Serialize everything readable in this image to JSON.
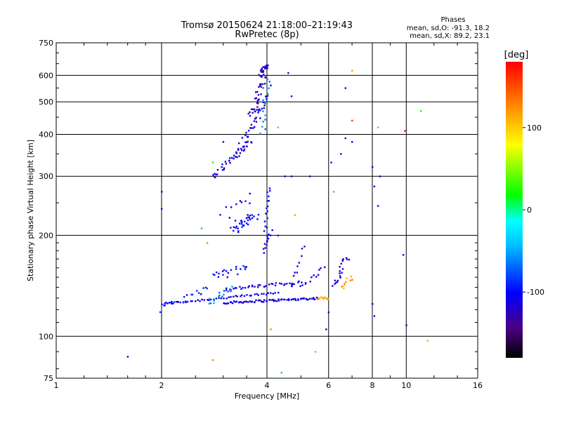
{
  "chart_data": {
    "type": "scatter",
    "title": "Tromsø 20150624 21:18:00–21:19:43",
    "subtitle": "RwPretec (8p)",
    "xlabel": "Frequency [MHz]",
    "ylabel": "Stationary phase Virtual Height [km]",
    "x_scale": "log",
    "y_scale": "log",
    "xlim": [
      1,
      16
    ],
    "ylim": [
      75,
      750
    ],
    "x_ticks": [
      1,
      2,
      4,
      6,
      8,
      10,
      16
    ],
    "x_tick_labels": [
      "1",
      "2",
      "4",
      "6",
      "8",
      "10",
      "16"
    ],
    "y_ticks": [
      75,
      100,
      200,
      300,
      400,
      500,
      600,
      750
    ],
    "y_tick_labels": [
      "75",
      "100",
      "200",
      "300",
      "400",
      "500",
      "600",
      "750"
    ],
    "grid": true,
    "phase_stats": {
      "heading": "Phases",
      "line_o": "mean, sd,O: -91.3, 18.2",
      "line_x": "mean, sd,X:  89.2, 23.1"
    },
    "colorbar": {
      "unit_label": "[deg]",
      "range": [
        -180,
        180
      ],
      "ticks": [
        100,
        0,
        -100
      ],
      "tick_labels": [
        "100",
        "0",
        "-100"
      ],
      "colormap": [
        "#000000",
        "#4b0082",
        "#0000ff",
        "#00bfff",
        "#00ffff",
        "#00ff00",
        "#ffff00",
        "#ff8000",
        "#ff0000"
      ]
    },
    "traces": [
      {
        "type": "seg",
        "x0": 2.0,
        "x1": 4.3,
        "h0": 125,
        "h1": 135,
        "n": 50,
        "phase": -110,
        "jitter": 0.01
      },
      {
        "type": "seg",
        "x0": 3.0,
        "x1": 5.6,
        "h0": 126,
        "h1": 130,
        "n": 70,
        "phase": -115,
        "jitter": 0.01
      },
      {
        "type": "seg",
        "x0": 5.6,
        "x1": 6.0,
        "h0": 130,
        "h1": 130,
        "n": 12,
        "phase": 120,
        "jitter": 0.01
      },
      {
        "type": "seg",
        "x0": 3.0,
        "x1": 5.0,
        "h0": 138,
        "h1": 145,
        "n": 40,
        "phase": -110,
        "jitter": 0.015
      },
      {
        "type": "seg",
        "x0": 5.0,
        "x1": 5.8,
        "h0": 140,
        "h1": 160,
        "n": 12,
        "phase": -110,
        "jitter": 0.02
      },
      {
        "type": "seg",
        "x0": 3.9,
        "x1": 4.1,
        "h0": 180,
        "h1": 205,
        "n": 12,
        "phase": -110,
        "jitter": 0.02
      },
      {
        "type": "seg",
        "x0": 3.95,
        "x1": 4.05,
        "h0": 205,
        "h1": 280,
        "n": 15,
        "phase": -110,
        "jitter": 0.02
      },
      {
        "type": "seg",
        "x0": 3.2,
        "x1": 3.7,
        "h0": 210,
        "h1": 230,
        "n": 35,
        "phase": -105,
        "jitter": 0.05
      },
      {
        "type": "seg",
        "x0": 3.0,
        "x1": 3.6,
        "h0": 230,
        "h1": 260,
        "n": 10,
        "phase": -100,
        "jitter": 0.05
      },
      {
        "type": "seg",
        "x0": 2.8,
        "x1": 3.6,
        "h0": 300,
        "h1": 380,
        "n": 35,
        "phase": -110,
        "jitter": 0.03
      },
      {
        "type": "seg",
        "x0": 3.3,
        "x1": 4.0,
        "h0": 350,
        "h1": 520,
        "n": 40,
        "phase": -115,
        "jitter": 0.04
      },
      {
        "type": "seg",
        "x0": 3.6,
        "x1": 4.0,
        "h0": 450,
        "h1": 640,
        "n": 40,
        "phase": -120,
        "jitter": 0.04
      },
      {
        "type": "seg",
        "x0": 3.8,
        "x1": 4.0,
        "h0": 600,
        "h1": 650,
        "n": 15,
        "phase": -120,
        "jitter": 0.02
      },
      {
        "type": "seg",
        "x0": 3.9,
        "x1": 4.0,
        "h0": 400,
        "h1": 600,
        "n": 15,
        "phase": -60,
        "jitter": 0.04
      },
      {
        "type": "seg",
        "x0": 6.2,
        "x1": 6.8,
        "h0": 140,
        "h1": 175,
        "n": 20,
        "phase": -110,
        "jitter": 0.03
      },
      {
        "type": "seg",
        "x0": 6.5,
        "x1": 7.0,
        "h0": 140,
        "h1": 150,
        "n": 10,
        "phase": 120,
        "jitter": 0.03
      },
      {
        "type": "seg",
        "x0": 2.7,
        "x1": 3.2,
        "h0": 125,
        "h1": 140,
        "n": 15,
        "phase": -60,
        "jitter": 0.03
      },
      {
        "type": "seg",
        "x0": 2.0,
        "x1": 2.7,
        "h0": 120,
        "h1": 140,
        "n": 20,
        "phase": -90,
        "jitter": 0.03
      },
      {
        "type": "seg",
        "x0": 2.8,
        "x1": 3.5,
        "h0": 150,
        "h1": 160,
        "n": 20,
        "phase": -100,
        "jitter": 0.04
      },
      {
        "type": "seg",
        "x0": 4.7,
        "x1": 5.1,
        "h0": 140,
        "h1": 185,
        "n": 10,
        "phase": -110,
        "jitter": 0.03
      },
      {
        "type": "pt",
        "x": 1.6,
        "h": 87,
        "phase": -110
      },
      {
        "type": "pt",
        "x": 2.0,
        "h": 270,
        "phase": -110
      },
      {
        "type": "pt",
        "x": 2.0,
        "h": 240,
        "phase": -110
      },
      {
        "type": "pt",
        "x": 2.8,
        "h": 85,
        "phase": 130
      },
      {
        "type": "pt",
        "x": 4.1,
        "h": 105,
        "phase": 130
      },
      {
        "type": "pt",
        "x": 4.4,
        "h": 78,
        "phase": -40
      },
      {
        "type": "pt",
        "x": 5.5,
        "h": 90,
        "phase": 120
      },
      {
        "type": "pt",
        "x": 5.9,
        "h": 105,
        "phase": -110
      },
      {
        "type": "pt",
        "x": 6.0,
        "h": 118,
        "phase": -110
      },
      {
        "type": "pt",
        "x": 7.0,
        "h": 620,
        "phase": 120
      },
      {
        "type": "pt",
        "x": 7.0,
        "h": 380,
        "phase": -110
      },
      {
        "type": "pt",
        "x": 7.0,
        "h": 440,
        "phase": 160
      },
      {
        "type": "pt",
        "x": 6.7,
        "h": 550,
        "phase": -110
      },
      {
        "type": "pt",
        "x": 8.0,
        "h": 320,
        "phase": -110
      },
      {
        "type": "pt",
        "x": 8.1,
        "h": 280,
        "phase": -110
      },
      {
        "type": "pt",
        "x": 8.3,
        "h": 420,
        "phase": 120
      },
      {
        "type": "pt",
        "x": 8.4,
        "h": 300,
        "phase": -110
      },
      {
        "type": "pt",
        "x": 8.3,
        "h": 245,
        "phase": -110
      },
      {
        "type": "pt",
        "x": 8.0,
        "h": 125,
        "phase": -110
      },
      {
        "type": "pt",
        "x": 8.1,
        "h": 115,
        "phase": -110
      },
      {
        "type": "pt",
        "x": 9.8,
        "h": 175,
        "phase": -110
      },
      {
        "type": "pt",
        "x": 9.9,
        "h": 410,
        "phase": 170
      },
      {
        "type": "pt",
        "x": 10.0,
        "h": 108,
        "phase": -110
      },
      {
        "type": "pt",
        "x": 11.0,
        "h": 470,
        "phase": 20
      },
      {
        "type": "pt",
        "x": 11.5,
        "h": 97,
        "phase": 110
      },
      {
        "type": "pt",
        "x": 4.6,
        "h": 610,
        "phase": -110
      },
      {
        "type": "pt",
        "x": 4.7,
        "h": 520,
        "phase": -110
      },
      {
        "type": "pt",
        "x": 4.5,
        "h": 300,
        "phase": -110
      },
      {
        "type": "pt",
        "x": 4.7,
        "h": 300,
        "phase": -110
      },
      {
        "type": "pt",
        "x": 4.3,
        "h": 200,
        "phase": -110
      },
      {
        "type": "pt",
        "x": 4.8,
        "h": 230,
        "phase": 120
      },
      {
        "type": "pt",
        "x": 5.3,
        "h": 300,
        "phase": -110
      },
      {
        "type": "pt",
        "x": 6.1,
        "h": 330,
        "phase": -110
      },
      {
        "type": "pt",
        "x": 6.5,
        "h": 350,
        "phase": -110
      },
      {
        "type": "pt",
        "x": 6.2,
        "h": 270,
        "phase": 130
      },
      {
        "type": "pt",
        "x": 6.7,
        "h": 390,
        "phase": -110
      },
      {
        "type": "pt",
        "x": 4.3,
        "h": 420,
        "phase": 120
      },
      {
        "type": "pt",
        "x": 4.1,
        "h": 560,
        "phase": -110
      },
      {
        "type": "pt",
        "x": 2.6,
        "h": 210,
        "phase": -40
      },
      {
        "type": "pt",
        "x": 2.7,
        "h": 190,
        "phase": 130
      },
      {
        "type": "pt",
        "x": 2.8,
        "h": 330,
        "phase": 20
      },
      {
        "type": "pt",
        "x": 3.0,
        "h": 380,
        "phase": -110
      }
    ]
  }
}
